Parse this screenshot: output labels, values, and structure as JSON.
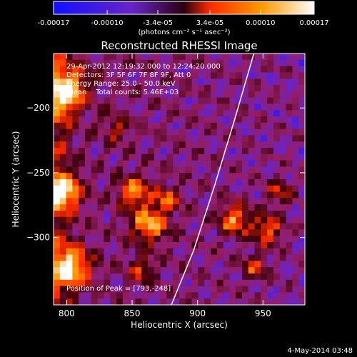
{
  "colorbar": {
    "ticks": [
      "-0.00017",
      "-0.00010",
      "-3.4e-05",
      "3.4e-05",
      "0.00010",
      "0.00017"
    ],
    "tick_values": [
      -0.00017,
      -0.0001,
      -3.4e-05,
      3.4e-05,
      0.0001,
      0.00017
    ],
    "range": [
      -0.00017,
      0.00017
    ],
    "unit_label": "(photons cm⁻² s⁻¹ asec⁻²)",
    "colors": [
      "#1010ff",
      "#6a23c8",
      "#ff2a00",
      "#ff9a00",
      "#ffffff"
    ]
  },
  "chart_data": {
    "type": "heatmap",
    "title": "Reconstructed RHESSI Image",
    "xlabel": "Heliocentric X (arcsec)",
    "ylabel": "Heliocentric Y (arcsec)",
    "xlim": [
      790,
      982
    ],
    "ylim": [
      -352,
      -158
    ],
    "xticks": [
      800,
      850,
      900,
      950
    ],
    "yticks": [
      -200,
      -250,
      -300
    ],
    "xtick_labels": [
      "800",
      "850",
      "900",
      "950"
    ],
    "ytick_labels": [
      "−200",
      "−250",
      "−300"
    ],
    "info_lines": [
      "29-Apr-2012 12:19:32.000 to 12:24:20.000",
      "Detectors: 3F 5F 6F 7F 8F 9F, Att 0",
      "Energy Range: 25.0 - 50.0 keV",
      "Clean    Total counts: 5.46E+03"
    ],
    "peak_label": "Position of Peak = [793,-248]",
    "peak": [
      793,
      -248
    ],
    "limb_curve": {
      "x": [
        880,
        897,
        913,
        928,
        943
      ],
      "y": [
        -352,
        -310,
        -260,
        -210,
        -158
      ]
    },
    "grid": false
  },
  "footer": {
    "date": "4-May-2014 03:48"
  }
}
